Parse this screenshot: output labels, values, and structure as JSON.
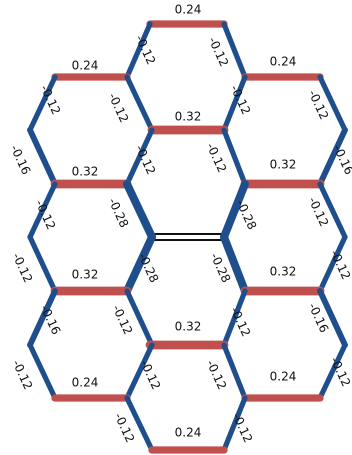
{
  "bonds": [
    {
      "label": "0.24"
    },
    {
      "label": "-0.12"
    },
    {
      "label": "-0.12"
    },
    {
      "label": "0.24"
    },
    {
      "label": "-0.12"
    },
    {
      "label": "-0.12"
    },
    {
      "label": "0.24"
    },
    {
      "label": "-0.12"
    },
    {
      "label": "-0.12"
    },
    {
      "label": "0.32"
    },
    {
      "label": "-0.12"
    },
    {
      "label": "-0.12"
    },
    {
      "label": "-0.16"
    },
    {
      "label": "-0.16"
    },
    {
      "label": "0.32"
    },
    {
      "label": "0.32"
    },
    {
      "label": "-0.28"
    },
    {
      "label": "-0.28"
    },
    {
      "label": "-0.12"
    },
    {
      "label": "-0.12"
    },
    {
      "label": "-0.12"
    },
    {
      "label": "-0.12"
    },
    {
      "label": "-0.28"
    },
    {
      "label": "-0.28"
    },
    {
      "label": "0.32"
    },
    {
      "label": "0.32"
    },
    {
      "label": "-0.16"
    },
    {
      "label": "-0.12"
    },
    {
      "label": "-0.12"
    },
    {
      "label": "-0.16"
    },
    {
      "label": "0.32"
    },
    {
      "label": "-0.12"
    },
    {
      "label": "-0.12"
    },
    {
      "label": "-0.12"
    },
    {
      "label": "-0.12"
    },
    {
      "label": "0.24"
    },
    {
      "label": "0.24"
    },
    {
      "label": "-0.12"
    },
    {
      "label": "-0.12"
    },
    {
      "label": "0.24"
    }
  ]
}
